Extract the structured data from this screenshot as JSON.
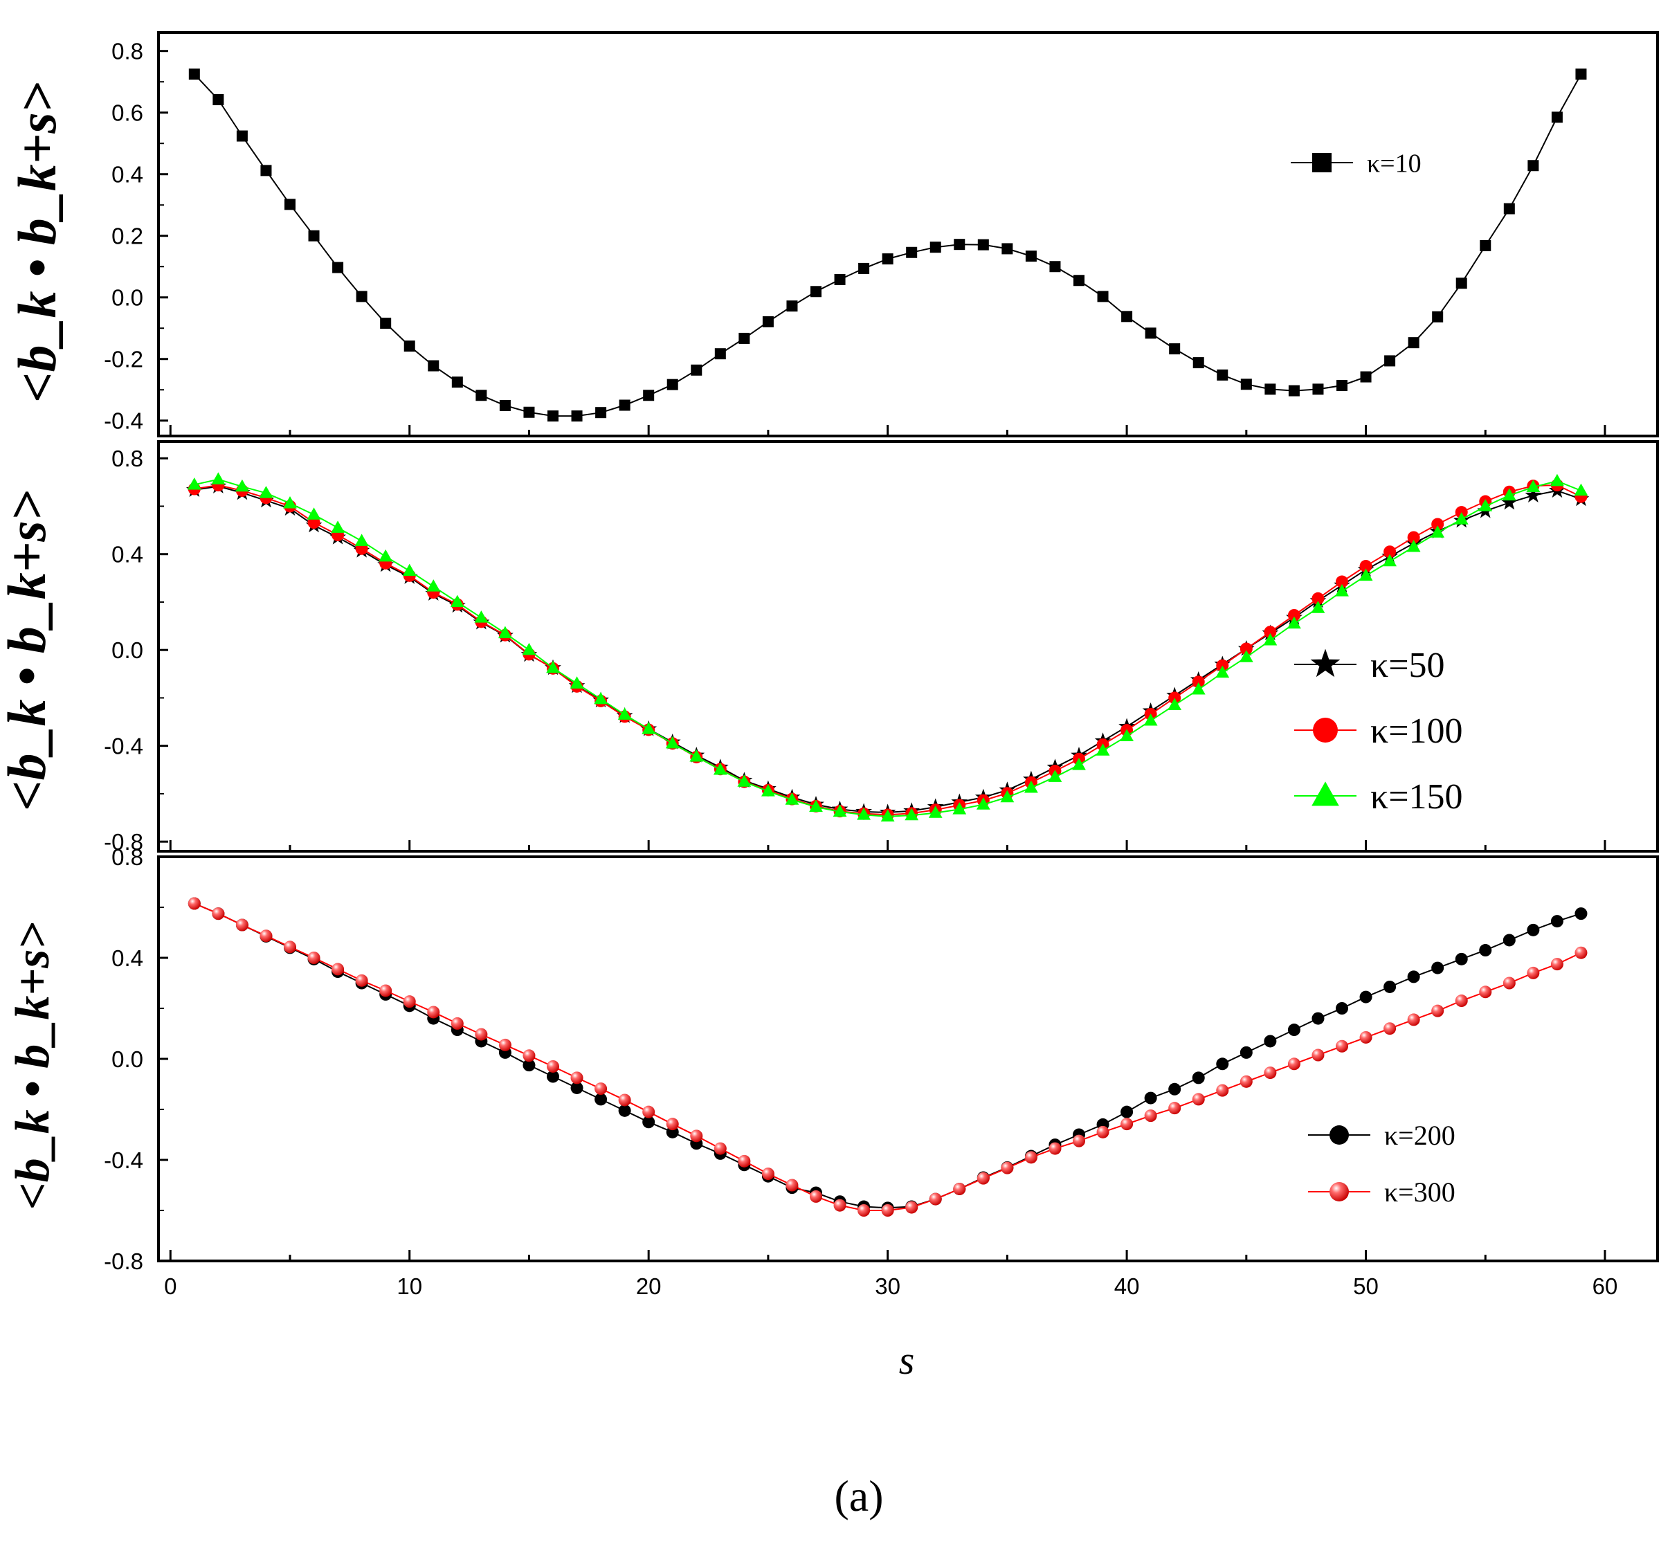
{
  "chart_data": [
    {
      "type": "line",
      "panel": "top",
      "ylabel": "<b_k • b_k+s>",
      "ylim": [
        -0.45,
        0.86
      ],
      "yticks": [
        "0.8",
        "0.6",
        "0.4",
        "0.2",
        "0.0",
        "-0.2",
        "-0.4"
      ],
      "ytick_values": [
        0.8,
        0.6,
        0.4,
        0.2,
        0.0,
        -0.2,
        -0.4
      ],
      "xlim": [
        -0.5,
        62.2
      ],
      "legend_position": "top-right",
      "series": [
        {
          "name": "κ=10",
          "marker": "square",
          "color": "#000000",
          "x": [
            1,
            2,
            3,
            4,
            5,
            6,
            7,
            8,
            9,
            10,
            11,
            12,
            13,
            14,
            15,
            16,
            17,
            18,
            19,
            20,
            21,
            22,
            23,
            24,
            25,
            26,
            27,
            28,
            29,
            30,
            31,
            32,
            33,
            34,
            35,
            36,
            37,
            38,
            39,
            40,
            41,
            42,
            43,
            44,
            45,
            46,
            47,
            48,
            49,
            50,
            51,
            52,
            53,
            54,
            55,
            56,
            57,
            58,
            59
          ],
          "values": [
            0.725,
            0.642,
            0.524,
            0.412,
            0.302,
            0.2,
            0.097,
            0.003,
            -0.084,
            -0.158,
            -0.222,
            -0.275,
            -0.318,
            -0.351,
            -0.373,
            -0.385,
            -0.385,
            -0.374,
            -0.35,
            -0.318,
            -0.283,
            -0.236,
            -0.183,
            -0.133,
            -0.079,
            -0.028,
            0.019,
            0.058,
            0.094,
            0.125,
            0.146,
            0.163,
            0.172,
            0.171,
            0.158,
            0.134,
            0.1,
            0.055,
            0.003,
            -0.062,
            -0.116,
            -0.167,
            -0.212,
            -0.252,
            -0.282,
            -0.298,
            -0.303,
            -0.298,
            -0.286,
            -0.258,
            -0.206,
            -0.147,
            -0.063,
            0.046,
            0.168,
            0.288,
            0.428,
            0.585,
            0.725
          ]
        }
      ]
    },
    {
      "type": "line",
      "panel": "middle",
      "ylabel": "<b_k • b_k+s>",
      "ylim": [
        -0.84,
        0.87
      ],
      "yticks": [
        "0.8",
        "0.4",
        "0.0",
        "-0.4",
        "-0.8"
      ],
      "ytick_values": [
        0.8,
        0.4,
        0.0,
        -0.4,
        -0.8
      ],
      "xlim": [
        -0.5,
        62.2
      ],
      "legend_position": "center-right",
      "series": [
        {
          "name": "κ=50",
          "marker": "star",
          "color": "#000000",
          "x": [
            1,
            2,
            3,
            4,
            5,
            6,
            7,
            8,
            9,
            10,
            11,
            12,
            13,
            14,
            15,
            16,
            17,
            18,
            19,
            20,
            21,
            22,
            23,
            24,
            25,
            26,
            27,
            28,
            29,
            30,
            31,
            32,
            33,
            34,
            35,
            36,
            37,
            38,
            39,
            40,
            41,
            42,
            43,
            44,
            45,
            46,
            47,
            48,
            49,
            50,
            51,
            52,
            53,
            54,
            55,
            56,
            57,
            58,
            59
          ],
          "values": [
            0.668,
            0.683,
            0.656,
            0.624,
            0.59,
            0.52,
            0.47,
            0.415,
            0.355,
            0.305,
            0.235,
            0.185,
            0.115,
            0.06,
            -0.02,
            -0.075,
            -0.15,
            -0.21,
            -0.275,
            -0.33,
            -0.385,
            -0.44,
            -0.49,
            -0.545,
            -0.58,
            -0.615,
            -0.645,
            -0.665,
            -0.675,
            -0.678,
            -0.672,
            -0.655,
            -0.635,
            -0.615,
            -0.585,
            -0.54,
            -0.49,
            -0.44,
            -0.38,
            -0.32,
            -0.255,
            -0.19,
            -0.125,
            -0.06,
            0.005,
            0.07,
            0.135,
            0.205,
            0.27,
            0.335,
            0.39,
            0.445,
            0.495,
            0.54,
            0.58,
            0.615,
            0.645,
            0.665,
            0.63
          ]
        },
        {
          "name": "κ=100",
          "marker": "circle",
          "color": "#ff0000",
          "x": [
            1,
            2,
            3,
            4,
            5,
            6,
            7,
            8,
            9,
            10,
            11,
            12,
            13,
            14,
            15,
            16,
            17,
            18,
            19,
            20,
            21,
            22,
            23,
            24,
            25,
            26,
            27,
            28,
            29,
            30,
            31,
            32,
            33,
            34,
            35,
            36,
            37,
            38,
            39,
            40,
            41,
            42,
            43,
            44,
            45,
            46,
            47,
            48,
            49,
            50,
            51,
            52,
            53,
            54,
            55,
            56,
            57,
            58,
            59
          ],
          "values": [
            0.672,
            0.688,
            0.665,
            0.635,
            0.6,
            0.532,
            0.48,
            0.423,
            0.362,
            0.31,
            0.24,
            0.19,
            0.118,
            0.062,
            -0.018,
            -0.077,
            -0.152,
            -0.213,
            -0.278,
            -0.333,
            -0.39,
            -0.447,
            -0.497,
            -0.55,
            -0.585,
            -0.622,
            -0.652,
            -0.673,
            -0.683,
            -0.688,
            -0.682,
            -0.667,
            -0.648,
            -0.628,
            -0.598,
            -0.553,
            -0.505,
            -0.455,
            -0.395,
            -0.335,
            -0.268,
            -0.2,
            -0.133,
            -0.065,
            0.005,
            0.075,
            0.145,
            0.215,
            0.285,
            0.35,
            0.41,
            0.47,
            0.525,
            0.575,
            0.62,
            0.66,
            0.685,
            0.688,
            0.64
          ]
        },
        {
          "name": "κ=150",
          "marker": "triangle",
          "color": "#00ff00",
          "x": [
            1,
            2,
            3,
            4,
            5,
            6,
            7,
            8,
            9,
            10,
            11,
            12,
            13,
            14,
            15,
            16,
            17,
            18,
            19,
            20,
            21,
            22,
            23,
            24,
            25,
            26,
            27,
            28,
            29,
            30,
            31,
            32,
            33,
            34,
            35,
            36,
            37,
            38,
            39,
            40,
            41,
            42,
            43,
            44,
            45,
            46,
            47,
            48,
            49,
            50,
            51,
            52,
            53,
            54,
            55,
            56,
            57,
            58,
            59
          ],
          "values": [
            0.69,
            0.712,
            0.682,
            0.655,
            0.612,
            0.565,
            0.51,
            0.455,
            0.39,
            0.33,
            0.265,
            0.2,
            0.135,
            0.07,
            0.0,
            -0.075,
            -0.14,
            -0.205,
            -0.27,
            -0.33,
            -0.39,
            -0.445,
            -0.5,
            -0.55,
            -0.59,
            -0.625,
            -0.655,
            -0.675,
            -0.688,
            -0.695,
            -0.69,
            -0.68,
            -0.665,
            -0.645,
            -0.615,
            -0.575,
            -0.53,
            -0.48,
            -0.42,
            -0.36,
            -0.295,
            -0.23,
            -0.165,
            -0.095,
            -0.03,
            0.04,
            0.11,
            0.175,
            0.245,
            0.31,
            0.37,
            0.43,
            0.49,
            0.545,
            0.6,
            0.645,
            0.68,
            0.705,
            0.665
          ]
        }
      ]
    },
    {
      "type": "line",
      "panel": "bottom",
      "ylabel": "<b_k • b_k+s>",
      "ylim": [
        -0.8,
        0.8
      ],
      "yticks": [
        "0.8",
        "0.4",
        "0.0",
        "-0.4",
        "-0.8"
      ],
      "ytick_values": [
        0.8,
        0.4,
        0.0,
        -0.4,
        -0.8
      ],
      "xlim": [
        -0.5,
        62.2
      ],
      "xticks": [
        "0",
        "10",
        "20",
        "30",
        "40",
        "50",
        "60"
      ],
      "xtick_values": [
        0,
        10,
        20,
        30,
        40,
        50,
        60
      ],
      "xlabel": "s",
      "legend_position": "bottom-right",
      "series": [
        {
          "name": "κ=200",
          "marker": "circle",
          "color": "#000000",
          "x": [
            1,
            2,
            3,
            4,
            5,
            6,
            7,
            8,
            9,
            10,
            11,
            12,
            13,
            14,
            15,
            16,
            17,
            18,
            19,
            20,
            21,
            22,
            23,
            24,
            25,
            26,
            27,
            28,
            29,
            30,
            31,
            32,
            33,
            34,
            35,
            36,
            37,
            38,
            39,
            40,
            41,
            42,
            43,
            44,
            45,
            46,
            47,
            48,
            49,
            50,
            51,
            52,
            53,
            54,
            55,
            56,
            57,
            58,
            59
          ],
          "values": [
            0.615,
            0.575,
            0.53,
            0.485,
            0.44,
            0.395,
            0.345,
            0.3,
            0.255,
            0.21,
            0.16,
            0.115,
            0.07,
            0.025,
            -0.025,
            -0.07,
            -0.115,
            -0.16,
            -0.205,
            -0.25,
            -0.29,
            -0.335,
            -0.375,
            -0.42,
            -0.465,
            -0.51,
            -0.53,
            -0.565,
            -0.585,
            -0.59,
            -0.585,
            -0.555,
            -0.515,
            -0.47,
            -0.43,
            -0.385,
            -0.34,
            -0.3,
            -0.26,
            -0.21,
            -0.155,
            -0.12,
            -0.075,
            -0.02,
            0.025,
            0.07,
            0.115,
            0.16,
            0.2,
            0.245,
            0.285,
            0.325,
            0.36,
            0.395,
            0.43,
            0.47,
            0.51,
            0.545,
            0.575
          ]
        },
        {
          "name": "κ=300",
          "marker": "sphere",
          "color": "#ff0000",
          "x": [
            1,
            2,
            3,
            4,
            5,
            6,
            7,
            8,
            9,
            10,
            11,
            12,
            13,
            14,
            15,
            16,
            17,
            18,
            19,
            20,
            21,
            22,
            23,
            24,
            25,
            26,
            27,
            28,
            29,
            30,
            31,
            32,
            33,
            34,
            35,
            36,
            37,
            38,
            39,
            40,
            41,
            42,
            43,
            44,
            45,
            46,
            47,
            48,
            49,
            50,
            51,
            52,
            53,
            54,
            55,
            56,
            57,
            58,
            59
          ],
          "values": [
            0.615,
            0.575,
            0.53,
            0.487,
            0.443,
            0.4,
            0.355,
            0.31,
            0.27,
            0.227,
            0.185,
            0.14,
            0.097,
            0.055,
            0.013,
            -0.03,
            -0.075,
            -0.118,
            -0.163,
            -0.21,
            -0.258,
            -0.305,
            -0.355,
            -0.405,
            -0.455,
            -0.5,
            -0.545,
            -0.58,
            -0.6,
            -0.6,
            -0.588,
            -0.555,
            -0.515,
            -0.473,
            -0.432,
            -0.39,
            -0.355,
            -0.325,
            -0.29,
            -0.258,
            -0.225,
            -0.195,
            -0.16,
            -0.125,
            -0.09,
            -0.055,
            -0.02,
            0.015,
            0.05,
            0.085,
            0.12,
            0.155,
            0.19,
            0.23,
            0.265,
            0.3,
            0.34,
            0.375,
            0.42
          ]
        }
      ]
    }
  ],
  "caption": "(a)"
}
